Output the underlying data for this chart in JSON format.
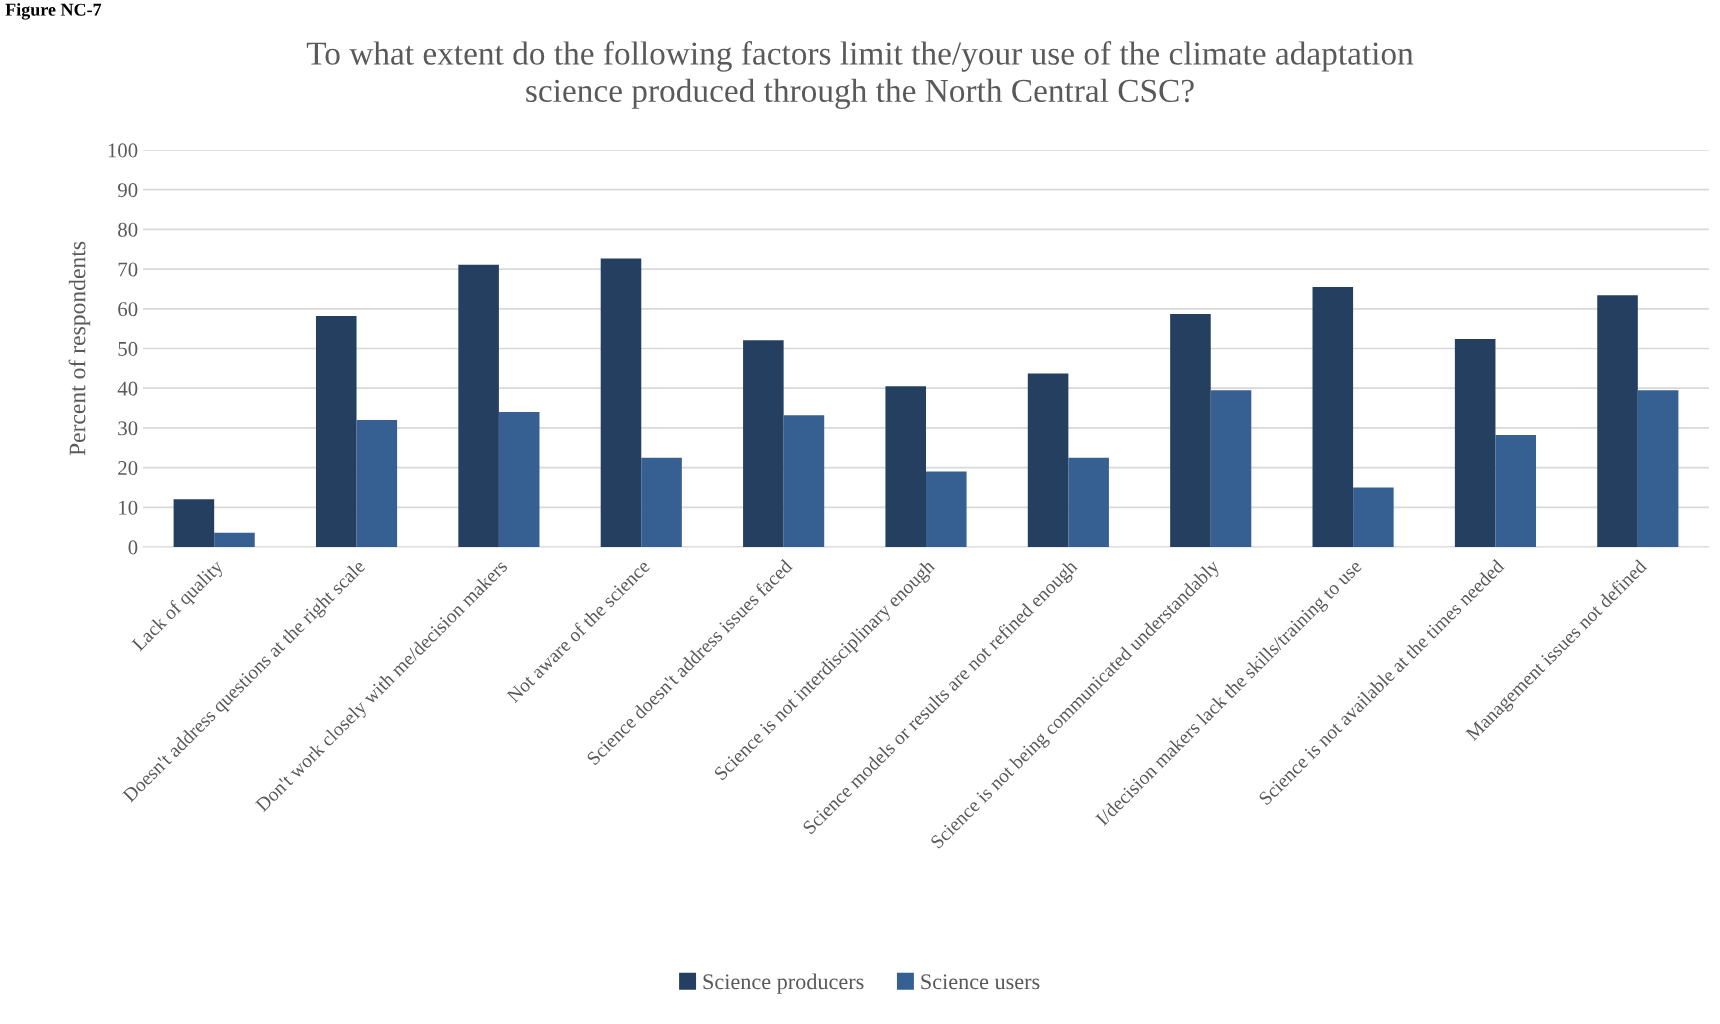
{
  "chart_data": {
    "type": "bar",
    "title": "To what extent do the following factors limit the/your use of the climate adaptation\nscience produced through the North Central CSC?",
    "ylabel": "Percent of respondents",
    "annotations": [
      "Figure NC-7"
    ],
    "categories": [
      "Lack of quality",
      "Doesn't address questions at the right scale",
      "Don't work closely with me/decision makers",
      "Not aware of the science",
      "Science doesn't address issues faced",
      "Science is not interdisciplinary enough",
      "Science models or results are not refined enough",
      "Science is not being communicated understandably",
      "I/decision makers lack the skills/training to use",
      "Science is not available at the times needed",
      "Management issues not defined"
    ],
    "series": [
      {
        "name": "Science producers",
        "color": "#243f60",
        "values": [
          12.0,
          58.2,
          71.1,
          72.7,
          52.1,
          40.5,
          43.7,
          58.7,
          65.5,
          52.4,
          63.4
        ]
      },
      {
        "name": "Science users",
        "color": "#366092",
        "values": [
          3.6,
          32.0,
          34.0,
          22.5,
          33.2,
          19.0,
          22.5,
          39.5,
          15.0,
          28.2,
          39.5
        ]
      }
    ],
    "ylim": [
      0,
      100
    ],
    "yticks": [
      0,
      10,
      20,
      30,
      40,
      50,
      60,
      70,
      80,
      90,
      100
    ],
    "grid": "y",
    "legend": "bottom"
  }
}
